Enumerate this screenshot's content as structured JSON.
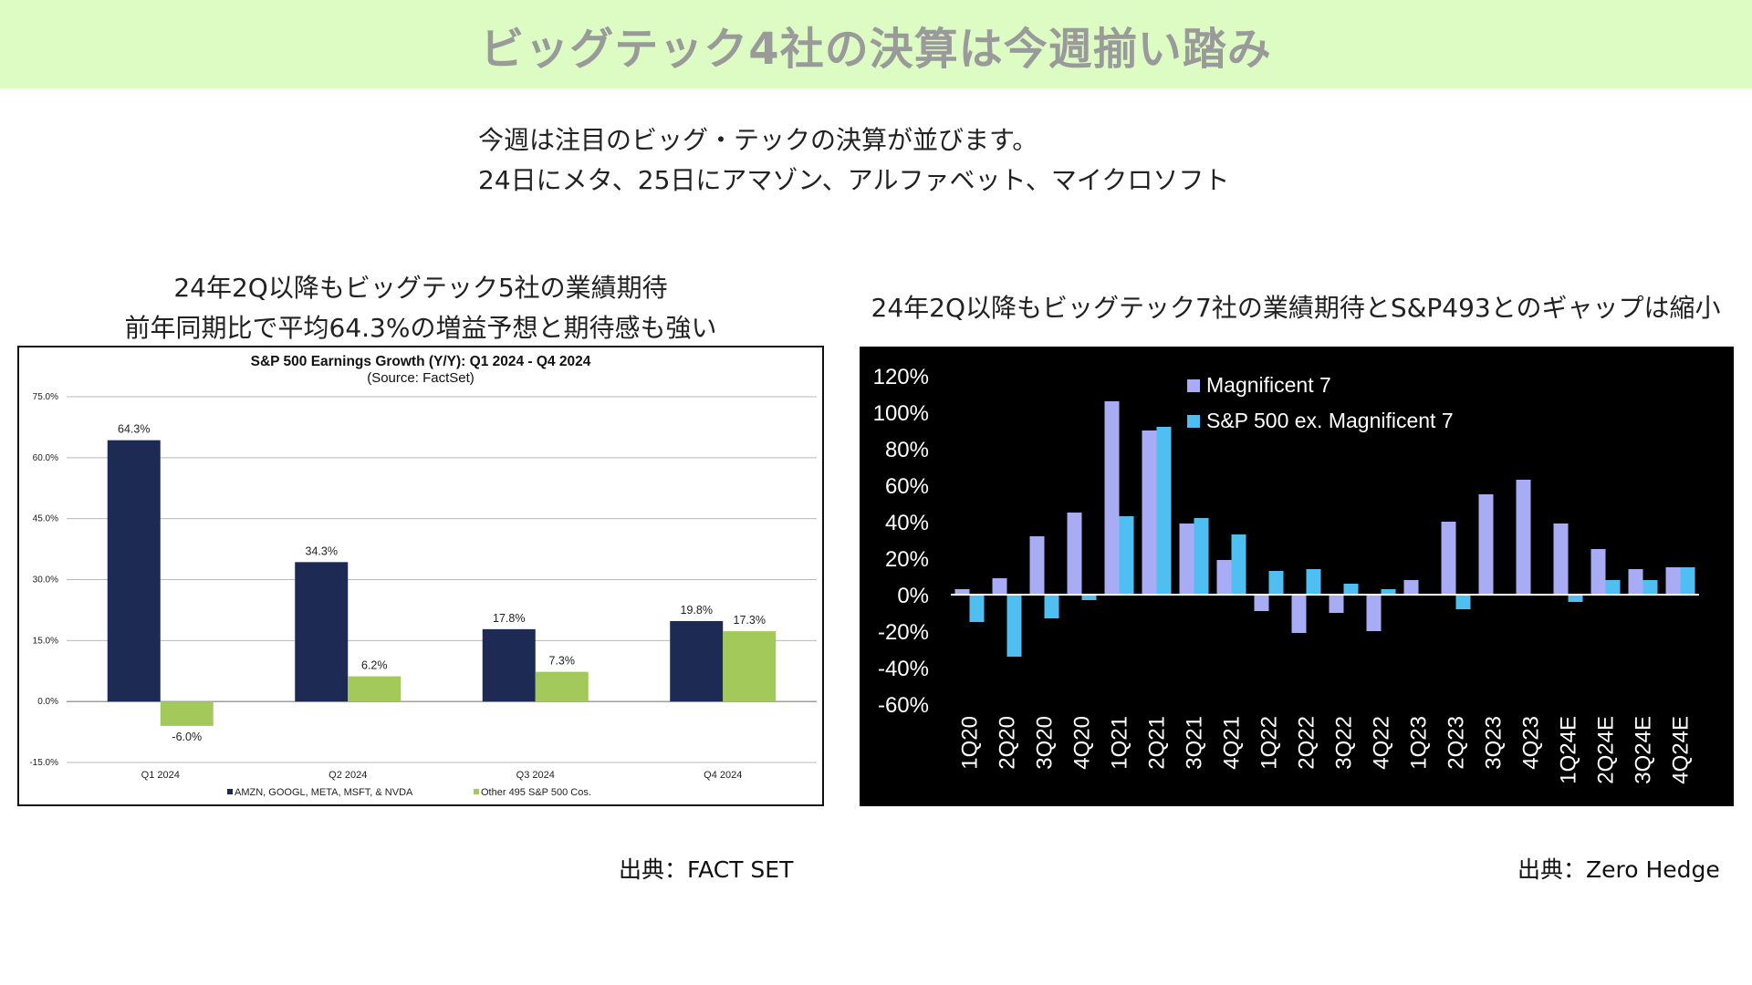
{
  "header": {
    "title": "ビッグテック4社の決算は今週揃い踏み"
  },
  "intro": {
    "line1": "今週は注目のビッグ・テックの決算が並びます。",
    "line2": "24日にメタ、25日にアマゾン、アルファベット、マイクロソフト"
  },
  "left": {
    "caption_line1": "24年2Q以降もビッグテック5社の業績期待",
    "caption_line2": "前年同期比で平均64.3%の増益予想と期待感も強い",
    "source": "出典：FACT SET"
  },
  "right": {
    "caption": "24年2Q以降もビッグテック7社の業績期待とS&P493とのギャップは縮小",
    "source": "出典：Zero Hedge"
  },
  "chart_data": [
    {
      "type": "bar",
      "title": "S&P 500 Earnings Growth (Y/Y): Q1 2024 - Q4 2024",
      "subtitle": "(Source: FactSet)",
      "categories": [
        "Q1 2024",
        "Q2 2024",
        "Q3 2024",
        "Q4 2024"
      ],
      "series": [
        {
          "name": "AMZN, GOOGL, META, MSFT, & NVDA",
          "values": [
            64.3,
            34.3,
            17.8,
            19.8
          ],
          "labels": [
            "64.3%",
            "34.3%",
            "17.8%",
            "19.8%"
          ],
          "color": "#1c2a54"
        },
        {
          "name": "Other 495 S&P 500 Cos.",
          "values": [
            -6.0,
            6.2,
            7.3,
            17.3
          ],
          "labels": [
            "-6.0%",
            "6.2%",
            "7.3%",
            "17.3%"
          ],
          "color": "#a3c95a"
        }
      ],
      "ylim": [
        -15,
        75
      ],
      "yticks": [
        75,
        60,
        45,
        30,
        15,
        0,
        -15
      ],
      "ytick_labels": [
        "75.0%",
        "60.0%",
        "45.0%",
        "30.0%",
        "15.0%",
        "0.0%",
        "-15.0%"
      ],
      "grid": true,
      "legend": "bottom"
    },
    {
      "type": "bar",
      "categories": [
        "1Q20",
        "2Q20",
        "3Q20",
        "4Q20",
        "1Q21",
        "2Q21",
        "3Q21",
        "4Q21",
        "1Q22",
        "2Q22",
        "3Q22",
        "4Q22",
        "1Q23",
        "2Q23",
        "3Q23",
        "4Q23",
        "1Q24E",
        "2Q24E",
        "3Q24E",
        "4Q24E"
      ],
      "series": [
        {
          "name": "Magnificent 7",
          "values": [
            3,
            9,
            32,
            45,
            106,
            90,
            39,
            19,
            -9,
            -21,
            -10,
            -20,
            8,
            40,
            55,
            63,
            39,
            25,
            14,
            15
          ],
          "color": "#a7acf5"
        },
        {
          "name": "S&P 500 ex. Magnificent 7",
          "values": [
            -15,
            -34,
            -13,
            -3,
            43,
            92,
            42,
            33,
            13,
            14,
            6,
            3,
            0,
            -8,
            0,
            0,
            -4,
            8,
            8,
            15
          ],
          "color": "#4fbff2"
        }
      ],
      "ylim": [
        -60,
        120
      ],
      "yticks": [
        120,
        100,
        80,
        60,
        40,
        20,
        0,
        -20,
        -40,
        -60
      ],
      "ytick_labels": [
        "120%",
        "100%",
        "80%",
        "60%",
        "40%",
        "20%",
        "0%",
        "-20%",
        "-40%",
        "-60%"
      ],
      "grid": false,
      "legend": "top-left"
    }
  ]
}
